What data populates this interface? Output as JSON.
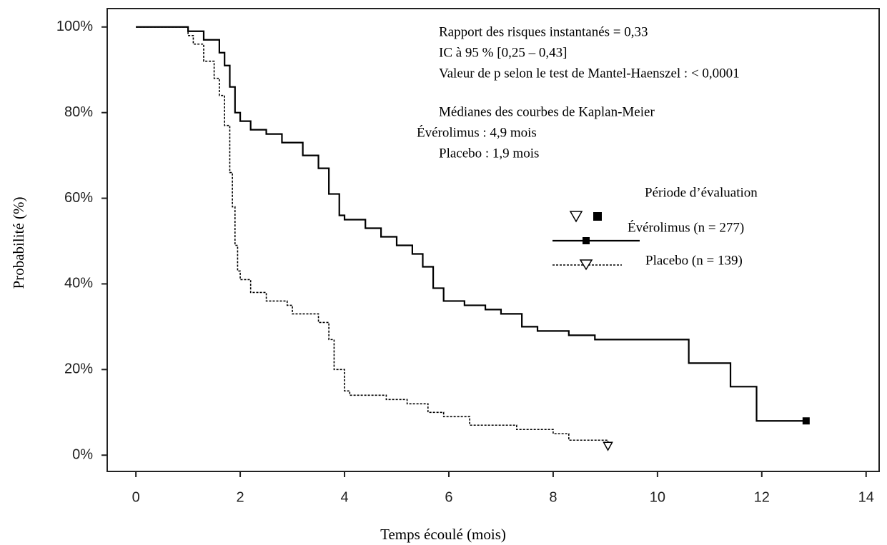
{
  "chart_data": {
    "type": "line",
    "step": true,
    "xlabel": "Temps écoulé (mois)",
    "ylabel": "Probabilité (%)",
    "xlim": [
      -0.55,
      14.25
    ],
    "ylim": [
      -3.8,
      104.3
    ],
    "xticks": [
      0,
      2,
      4,
      6,
      8,
      10,
      12,
      14
    ],
    "yticks": [
      {
        "value": 0,
        "label": "0%"
      },
      {
        "value": 20,
        "label": "20%"
      },
      {
        "value": 40,
        "label": "40%"
      },
      {
        "value": 60,
        "label": "60%"
      },
      {
        "value": 80,
        "label": "80%"
      },
      {
        "value": 100,
        "label": "100%"
      }
    ],
    "annotations": [
      "Rapport des risques instantanés = 0,33",
      "IC à 95 % [0,25 – 0,43]",
      "Valeur de p selon le test de Mantel-Haenszel : < 0,0001",
      "Médianes des courbes de Kaplan-Meier",
      "Évérolimus : 4,9 mois",
      "Placebo : 1,9 mois"
    ],
    "legend_title": "Période d’évaluation",
    "series": [
      {
        "name": "Évérolimus (n = 277)",
        "color": "#000000",
        "dash": "solid",
        "x": [
          0,
          0.6,
          1.0,
          1.3,
          1.6,
          1.7,
          1.8,
          1.9,
          2.0,
          2.2,
          2.5,
          2.8,
          3.2,
          3.5,
          3.7,
          3.9,
          4.0,
          4.4,
          4.7,
          5.0,
          5.3,
          5.5,
          5.7,
          5.9,
          6.3,
          6.7,
          7.0,
          7.4,
          7.7,
          8.3,
          8.8,
          10.6,
          11.4,
          11.9,
          12.85
        ],
        "values": [
          100,
          100,
          99,
          97,
          94,
          91,
          86,
          80,
          78,
          76,
          75,
          73,
          70,
          67,
          61,
          56,
          55,
          53,
          51,
          49,
          47,
          44,
          39,
          36,
          35,
          34,
          33,
          30,
          29,
          28,
          27,
          21.5,
          16,
          8,
          8
        ]
      },
      {
        "name": "Placebo (n = 139)",
        "color": "#000000",
        "dash": "dotted",
        "x": [
          0,
          0.7,
          1.0,
          1.1,
          1.3,
          1.5,
          1.6,
          1.7,
          1.8,
          1.85,
          1.9,
          1.95,
          2.0,
          2.2,
          2.5,
          2.9,
          3.0,
          3.5,
          3.7,
          3.8,
          4.0,
          4.1,
          4.8,
          5.2,
          5.6,
          5.9,
          6.4,
          7.3,
          8.0,
          8.3,
          9.05
        ],
        "values": [
          100,
          100,
          98,
          96,
          92,
          88,
          84,
          77,
          66,
          58,
          49,
          43,
          41,
          38,
          36,
          35,
          33,
          31,
          27,
          20,
          15,
          14,
          13,
          12,
          10,
          9,
          7,
          6,
          5,
          3.5,
          2
        ]
      }
    ]
  }
}
